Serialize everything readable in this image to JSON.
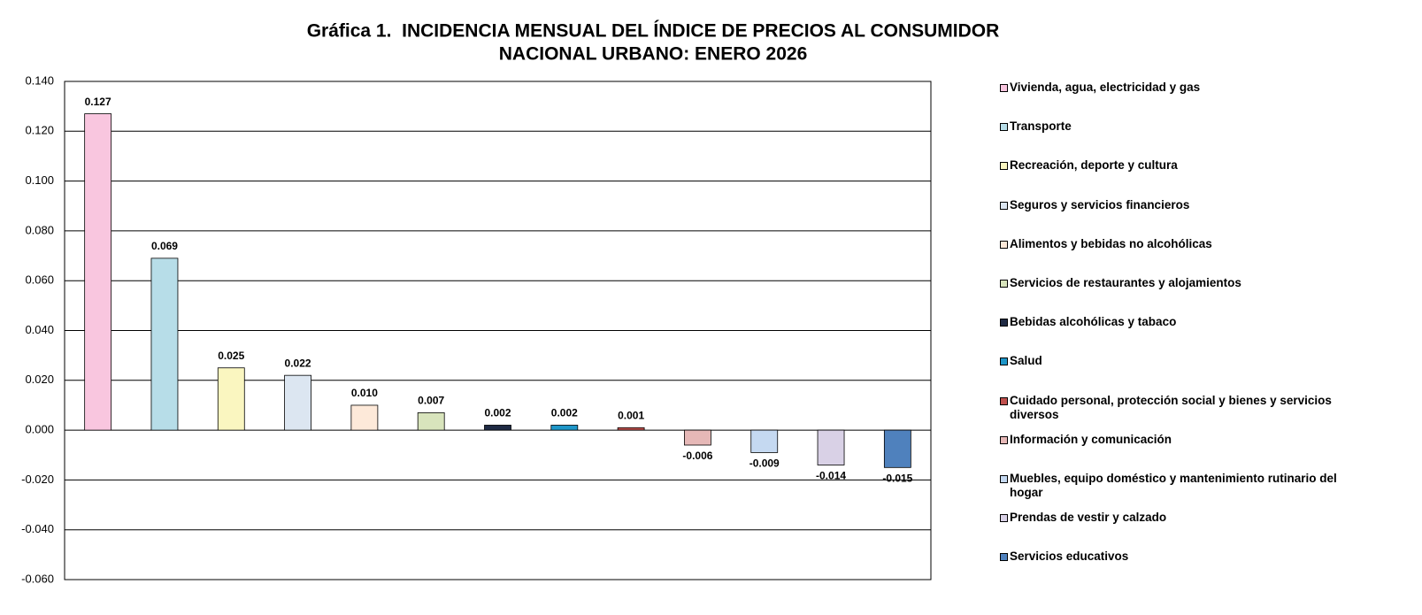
{
  "chart_data": {
    "type": "bar",
    "title": [
      "Gráfica 1.  INCIDENCIA MENSUAL DEL ÍNDICE DE PRECIOS AL CONSUMIDOR",
      "NACIONAL URBANO: ENERO 2026"
    ],
    "categories": [
      "Vivienda, agua, electricidad y gas",
      "Transporte",
      "Recreación, deporte y cultura",
      "Seguros y servicios financieros",
      "Alimentos y bebidas no alcohólicas",
      "Servicios de restaurantes y alojamientos",
      "Bebidas alcohólicas y tabaco",
      "Salud",
      "Cuidado personal, protección social y bienes y servicios diversos",
      "Información y comunicación",
      "Muebles, equipo doméstico y mantenimiento rutinario del hogar",
      "Prendas de vestir y calzado",
      "Servicios educativos"
    ],
    "values": [
      0.127,
      0.069,
      0.025,
      0.022,
      0.01,
      0.007,
      0.002,
      0.002,
      0.001,
      -0.006,
      -0.009,
      -0.014,
      -0.015
    ],
    "value_labels": [
      "0.127",
      "0.069",
      "0.025",
      "0.022",
      "0.010",
      "0.007",
      "0.002",
      "0.002",
      "0.001",
      "-0.006",
      "-0.009",
      "-0.014",
      "-0.015"
    ],
    "colors": [
      "#f9c6df",
      "#b7dde8",
      "#faf6c0",
      "#dce6f1",
      "#fde9d9",
      "#d8e4bc",
      "#1f2a44",
      "#1e96c8",
      "#c0504d",
      "#e6b8b7",
      "#c5d9f1",
      "#d9d1e6",
      "#4f81bd"
    ],
    "ylim": [
      -0.06,
      0.14
    ],
    "yticks": [
      {
        "value": -0.06,
        "label": "-0.060"
      },
      {
        "value": -0.04,
        "label": "-0.040"
      },
      {
        "value": -0.02,
        "label": "-0.020"
      },
      {
        "value": 0,
        "label": "0.000"
      },
      {
        "value": 0.02,
        "label": "0.020"
      },
      {
        "value": 0.04,
        "label": "0.040"
      },
      {
        "value": 0.06,
        "label": "0.060"
      },
      {
        "value": 0.08,
        "label": "0.080"
      },
      {
        "value": 0.1,
        "label": "0.100"
      },
      {
        "value": 0.12,
        "label": "0.120"
      },
      {
        "value": 0.14,
        "label": "0.140"
      }
    ],
    "grid": true
  }
}
